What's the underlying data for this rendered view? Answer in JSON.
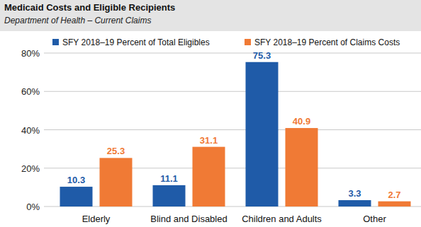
{
  "chart_data": {
    "type": "bar",
    "title": "Medicaid Costs and Eligible Recipients",
    "subtitle": "Department of Health – Current Claims",
    "categories": [
      "Elderly",
      "Blind and Disabled",
      "Children and Adults",
      "Other"
    ],
    "series": [
      {
        "name": "SFY 2018–19 Percent of Total Eligibles",
        "color": "#1f5ba8",
        "values": [
          10.3,
          11.1,
          75.3,
          3.3
        ]
      },
      {
        "name": "SFY 2018–19 Percent of Claims Costs",
        "color": "#f07a35",
        "values": [
          25.3,
          31.1,
          40.9,
          2.7
        ]
      }
    ],
    "ylim": [
      0,
      80
    ],
    "yticks": [
      {
        "value": 0,
        "label": "0%"
      },
      {
        "value": 20,
        "label": "20%"
      },
      {
        "value": 40,
        "label": "40%"
      },
      {
        "value": 60,
        "label": "60%"
      },
      {
        "value": 80,
        "label": "80%"
      }
    ],
    "grid": true,
    "legend": "top",
    "data_labels": true
  }
}
